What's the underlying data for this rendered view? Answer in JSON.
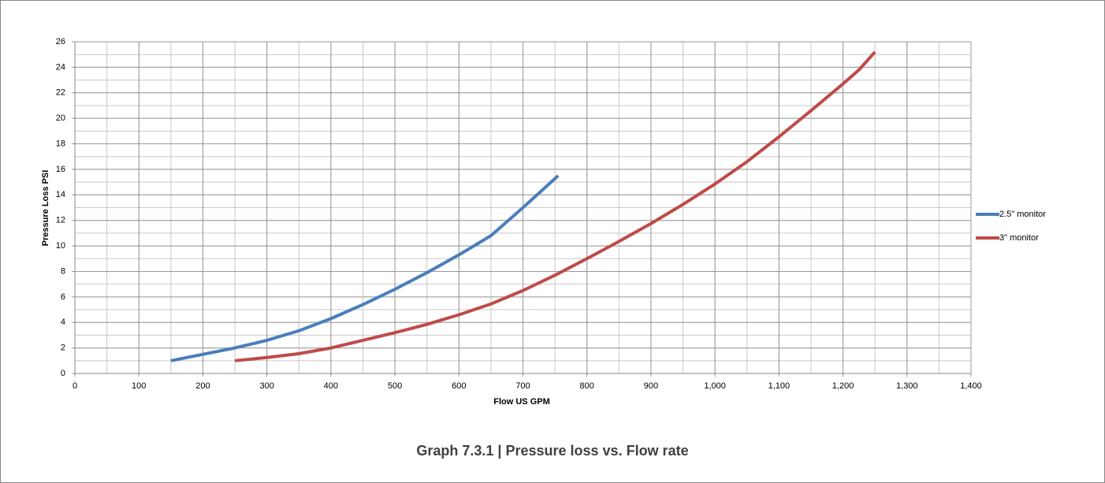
{
  "chart_data": {
    "type": "line",
    "caption": "Graph 7.3.1 | Pressure loss vs. Flow rate",
    "xlabel": "Flow US GPM",
    "ylabel": "Pressure Loss PSI",
    "xlim": [
      0,
      1400
    ],
    "xticks": [
      0,
      100,
      200,
      300,
      400,
      500,
      600,
      700,
      800,
      900,
      {
        "value": 1000,
        "label": "1,000"
      },
      {
        "value": 1100,
        "label": "1,100"
      },
      {
        "value": 1200,
        "label": "1,200"
      },
      {
        "value": 1300,
        "label": "1,300"
      },
      {
        "value": 1400,
        "label": "1,400"
      }
    ],
    "ylim": [
      0,
      26
    ],
    "yticks": [
      0,
      2,
      4,
      6,
      8,
      10,
      12,
      14,
      16,
      18,
      20,
      22,
      24,
      26
    ],
    "grid": true,
    "xgrid_step": 50,
    "ygrid_step": 1,
    "legend": "right",
    "series": [
      {
        "name": "2.5\" monitor",
        "color": "#4a7ebb",
        "x": [
          150,
          200,
          250,
          300,
          350,
          400,
          450,
          500,
          550,
          600,
          650,
          700,
          755
        ],
        "values": [
          1,
          1.5,
          2,
          2.6,
          3.35,
          4.3,
          5.4,
          6.6,
          7.9,
          9.3,
          10.8,
          13,
          15.5
        ]
      },
      {
        "name": "3\" monitor",
        "color": "#be4b48",
        "x": [
          250,
          300,
          350,
          400,
          450,
          500,
          550,
          600,
          650,
          700,
          750,
          800,
          850,
          900,
          950,
          1000,
          1050,
          1100,
          1150,
          1200,
          1225,
          1250
        ],
        "values": [
          1,
          1.25,
          1.55,
          2,
          2.6,
          3.2,
          3.85,
          4.6,
          5.45,
          6.5,
          7.7,
          9,
          10.35,
          11.75,
          13.25,
          14.85,
          16.6,
          18.55,
          20.6,
          22.7,
          23.8,
          25.2
        ]
      }
    ]
  }
}
